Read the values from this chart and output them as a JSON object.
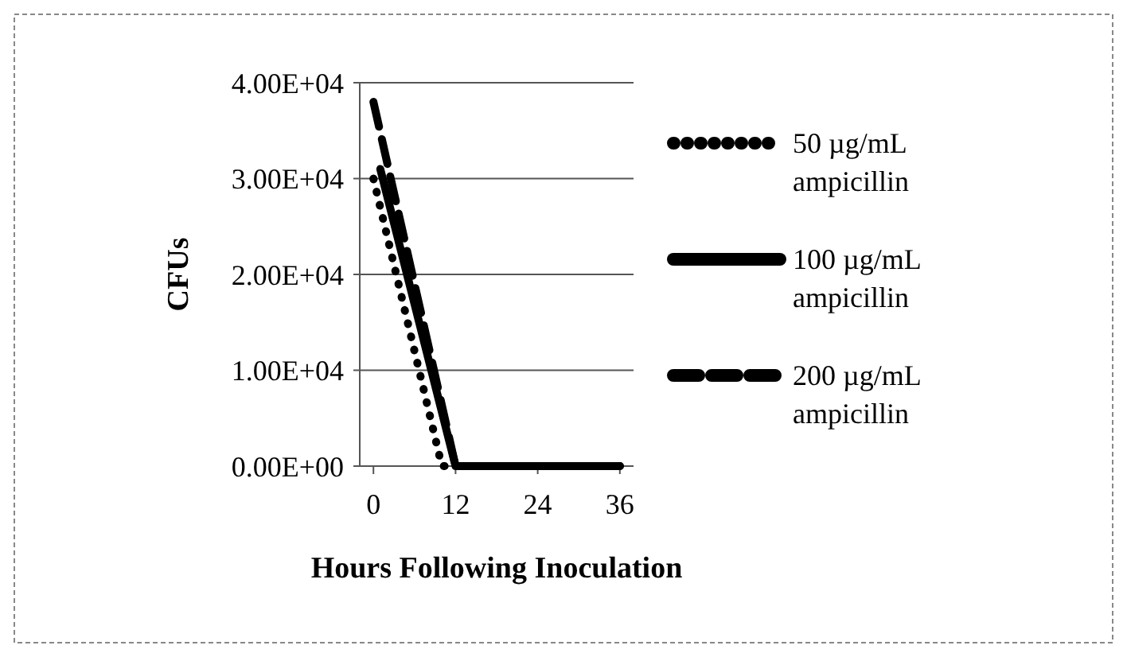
{
  "chart_data": {
    "type": "line",
    "xlabel": "Hours Following Inoculation",
    "ylabel": "CFUs",
    "series": [
      {
        "name": "50 µg/mL ampicillin",
        "color": "#000000",
        "line_style": "dotted",
        "x": [
          0,
          10,
          36
        ],
        "values": [
          30000,
          0,
          0
        ]
      },
      {
        "name": "100 µg/mL ampicillin",
        "color": "#000000",
        "line_style": "solid",
        "x": [
          1,
          12,
          36
        ],
        "values": [
          31000,
          0,
          0
        ]
      },
      {
        "name": "200 µg/mL ampicillin",
        "color": "#000000",
        "line_style": "dashed",
        "x": [
          0,
          12,
          36
        ],
        "values": [
          38000,
          0,
          0
        ]
      }
    ],
    "xlim": [
      -2,
      38
    ],
    "xticks": [
      0,
      12,
      24,
      36
    ],
    "ylim": [
      0,
      40000
    ],
    "yticks": [
      {
        "value": 0,
        "label": "0.00E+00"
      },
      {
        "value": 10000,
        "label": "1.00E+04"
      },
      {
        "value": 20000,
        "label": "2.00E+04"
      },
      {
        "value": 30000,
        "label": "3.00E+04"
      },
      {
        "value": 40000,
        "label": "4.00E+04"
      }
    ],
    "grid": "y",
    "legend": "right"
  }
}
